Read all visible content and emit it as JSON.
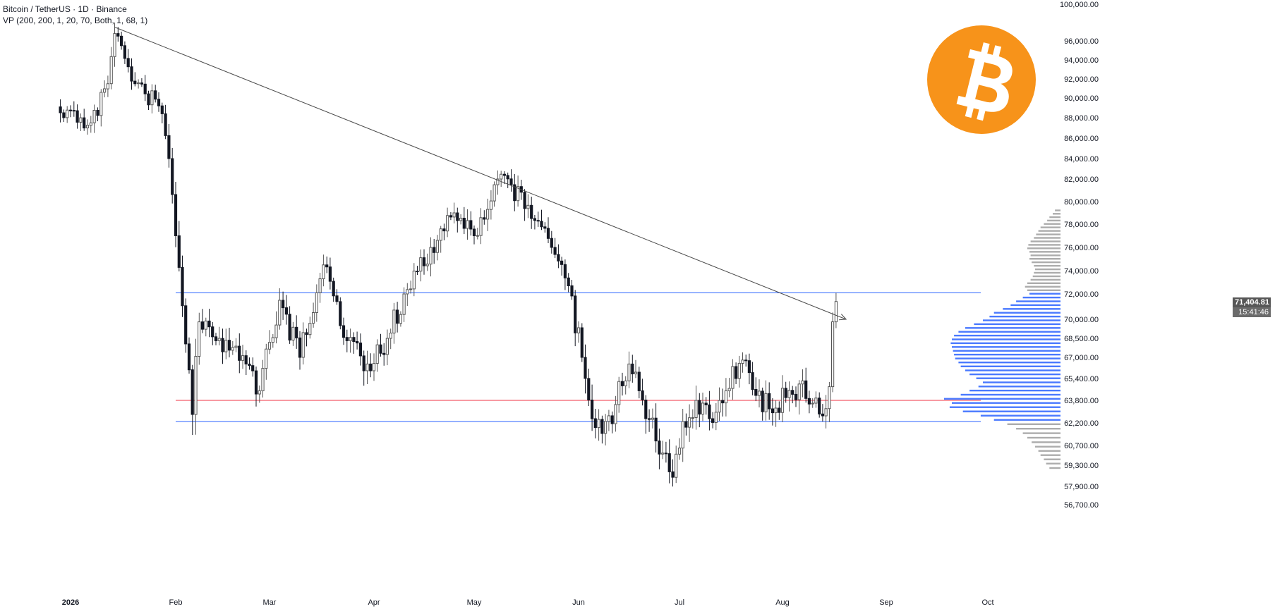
{
  "symbol_line": "Bitcoin / TetherUS · 1D · Binance",
  "indicator_line": "VP (200, 200, 1, 20, 70, Both, 1, 68, 1)",
  "last_price_label": "71,404.81",
  "countdown_label": "15:41:46",
  "logo_icon": "bitcoin-logo-icon",
  "colors": {
    "accent_line": "#2962ff",
    "support_line": "#f23645",
    "candle_up": "#555555",
    "candle_down": "#131722",
    "vp_up": "#2962ff",
    "vp_down": "#9e9e9e",
    "logo": "#f7931a"
  },
  "chart_data": {
    "type": "candlestick",
    "title": "Bitcoin / TetherUS · 1D · Binance",
    "y_axis_ticks": [
      100000,
      96000,
      94000,
      92000,
      90000,
      88000,
      86000,
      84000,
      82000,
      80000,
      78000,
      76000,
      74000,
      72000,
      70000,
      68500,
      67000,
      65400,
      63800,
      62200,
      60700,
      59300,
      57900,
      56700
    ],
    "y_tick_labels": [
      "100,000.00",
      "96,000.00",
      "94,000.00",
      "92,000.00",
      "90,000.00",
      "88,000.00",
      "86,000.00",
      "84,000.00",
      "82,000.00",
      "80,000.00",
      "78,000.00",
      "76,000.00",
      "74,000.00",
      "72,000.00",
      "70,000.00",
      "68,500.00",
      "67,000.00",
      "65,400.00",
      "63,800.00",
      "62,200.00",
      "60,700.00",
      "59,300.00",
      "57,900.00",
      "56,700.00"
    ],
    "x_axis_labels": [
      {
        "label": "2026",
        "date": "2026-01-01"
      },
      {
        "label": "Feb",
        "date": "2026-02-01"
      },
      {
        "label": "Mar",
        "date": "2026-03-01"
      },
      {
        "label": "Apr",
        "date": "2026-04-01"
      },
      {
        "label": "May",
        "date": "2026-05-01"
      },
      {
        "label": "Jun",
        "date": "2026-06-01"
      },
      {
        "label": "Jul",
        "date": "2026-07-01"
      },
      {
        "label": "Aug",
        "date": "2026-08-01"
      },
      {
        "label": "Sep",
        "date": "2026-09-01"
      },
      {
        "label": "Oct",
        "date": "2026-10-01"
      }
    ],
    "first_candle_date": "2025-12-29",
    "key_closes": [
      {
        "date": "2025-12-29",
        "close": 88500
      },
      {
        "date": "2026-01-07",
        "close": 87500
      },
      {
        "date": "2026-01-12",
        "close": 91500
      },
      {
        "date": "2026-01-14",
        "close": 96800
      },
      {
        "date": "2026-01-20",
        "close": 91500
      },
      {
        "date": "2026-01-27",
        "close": 89200
      },
      {
        "date": "2026-01-30",
        "close": 84000
      },
      {
        "date": "2026-02-01",
        "close": 77000
      },
      {
        "date": "2026-02-06",
        "close": 62800
      },
      {
        "date": "2026-02-08",
        "close": 69800
      },
      {
        "date": "2026-02-14",
        "close": 68500
      },
      {
        "date": "2026-02-22",
        "close": 66500
      },
      {
        "date": "2026-02-26",
        "close": 64500
      },
      {
        "date": "2026-03-04",
        "close": 71500
      },
      {
        "date": "2026-03-10",
        "close": 67000
      },
      {
        "date": "2026-03-17",
        "close": 74500
      },
      {
        "date": "2026-03-22",
        "close": 69500
      },
      {
        "date": "2026-03-30",
        "close": 66500
      },
      {
        "date": "2026-04-05",
        "close": 68500
      },
      {
        "date": "2026-04-10",
        "close": 72000
      },
      {
        "date": "2026-04-18",
        "close": 76000
      },
      {
        "date": "2026-04-25",
        "close": 79000
      },
      {
        "date": "2026-05-01",
        "close": 77000
      },
      {
        "date": "2026-05-08",
        "close": 82000
      },
      {
        "date": "2026-05-12",
        "close": 81500
      },
      {
        "date": "2026-05-18",
        "close": 78500
      },
      {
        "date": "2026-05-24",
        "close": 76000
      },
      {
        "date": "2026-05-29",
        "close": 72700
      },
      {
        "date": "2026-06-02",
        "close": 67000
      },
      {
        "date": "2026-06-05",
        "close": 62500
      },
      {
        "date": "2026-06-08",
        "close": 61500
      },
      {
        "date": "2026-06-12",
        "close": 63500
      },
      {
        "date": "2026-06-16",
        "close": 66500
      },
      {
        "date": "2026-06-19",
        "close": 64500
      },
      {
        "date": "2026-06-24",
        "close": 61000
      },
      {
        "date": "2026-06-29",
        "close": 58500
      },
      {
        "date": "2026-07-02",
        "close": 62300
      },
      {
        "date": "2026-07-06",
        "close": 63800
      },
      {
        "date": "2026-07-10",
        "close": 62500
      },
      {
        "date": "2026-07-15",
        "close": 64500
      },
      {
        "date": "2026-07-20",
        "close": 66800
      },
      {
        "date": "2026-07-23",
        "close": 64600
      },
      {
        "date": "2026-07-28",
        "close": 63200
      },
      {
        "date": "2026-08-02",
        "close": 64000
      },
      {
        "date": "2026-08-06",
        "close": 65000
      },
      {
        "date": "2026-08-10",
        "close": 63600
      },
      {
        "date": "2026-08-13",
        "close": 62700
      },
      {
        "date": "2026-08-15",
        "close": 64800
      },
      {
        "date": "2026-08-16",
        "close": 69800
      },
      {
        "date": "2026-08-17",
        "close": 71404.81
      }
    ],
    "horizontal_lines": [
      {
        "price": 72100,
        "color": "#2962ff"
      },
      {
        "price": 63800,
        "color": "#f23645"
      },
      {
        "price": 62300,
        "color": "#2962ff"
      }
    ],
    "trend_line": {
      "start": {
        "date": "2026-01-14",
        "price": 97500
      },
      "end": {
        "date": "2026-08-20",
        "price": 70000
      },
      "arrow": true
    },
    "volume_profile": {
      "price_min": 59000,
      "price_max": 79200,
      "up_color": "#2962ff",
      "down_color": "#9e9e9e",
      "rows": [
        {
          "price": 59100,
          "volume": 10
        },
        {
          "price": 59400,
          "volume": 13
        },
        {
          "price": 59700,
          "volume": 15
        },
        {
          "price": 60000,
          "volume": 18
        },
        {
          "price": 60300,
          "volume": 20
        },
        {
          "price": 60600,
          "volume": 23
        },
        {
          "price": 60900,
          "volume": 26
        },
        {
          "price": 61200,
          "volume": 30
        },
        {
          "price": 61500,
          "volume": 34
        },
        {
          "price": 61800,
          "volume": 40
        },
        {
          "price": 62100,
          "volume": 48
        },
        {
          "price": 62400,
          "volume": 60
        },
        {
          "price": 62700,
          "volume": 72
        },
        {
          "price": 63000,
          "volume": 88
        },
        {
          "price": 63300,
          "volume": 100
        },
        {
          "price": 63600,
          "volume": 98
        },
        {
          "price": 63900,
          "volume": 105
        },
        {
          "price": 64200,
          "volume": 90
        },
        {
          "price": 64500,
          "volume": 82
        },
        {
          "price": 64800,
          "volume": 74
        },
        {
          "price": 65100,
          "volume": 70
        },
        {
          "price": 65400,
          "volume": 76
        },
        {
          "price": 65700,
          "volume": 82
        },
        {
          "price": 66000,
          "volume": 86
        },
        {
          "price": 66300,
          "volume": 90
        },
        {
          "price": 66600,
          "volume": 92
        },
        {
          "price": 66900,
          "volume": 95
        },
        {
          "price": 67200,
          "volume": 96
        },
        {
          "price": 67500,
          "volume": 97
        },
        {
          "price": 67800,
          "volume": 98
        },
        {
          "price": 68100,
          "volume": 99
        },
        {
          "price": 68400,
          "volume": 98
        },
        {
          "price": 68700,
          "volume": 96
        },
        {
          "price": 69000,
          "volume": 92
        },
        {
          "price": 69300,
          "volume": 86
        },
        {
          "price": 69600,
          "volume": 78
        },
        {
          "price": 69900,
          "volume": 70
        },
        {
          "price": 70200,
          "volume": 64
        },
        {
          "price": 70500,
          "volume": 60
        },
        {
          "price": 70800,
          "volume": 52
        },
        {
          "price": 71100,
          "volume": 45
        },
        {
          "price": 71400,
          "volume": 40
        },
        {
          "price": 71700,
          "volume": 34
        },
        {
          "price": 72000,
          "volume": 28
        },
        {
          "price": 72300,
          "volume": 30
        },
        {
          "price": 72600,
          "volume": 32
        },
        {
          "price": 72900,
          "volume": 30
        },
        {
          "price": 73200,
          "volume": 27
        },
        {
          "price": 73500,
          "volume": 25
        },
        {
          "price": 73800,
          "volume": 24
        },
        {
          "price": 74100,
          "volume": 23
        },
        {
          "price": 74400,
          "volume": 24
        },
        {
          "price": 74700,
          "volume": 26
        },
        {
          "price": 75000,
          "volume": 28
        },
        {
          "price": 75300,
          "volume": 27
        },
        {
          "price": 75600,
          "volume": 28
        },
        {
          "price": 75900,
          "volume": 30
        },
        {
          "price": 76200,
          "volume": 29
        },
        {
          "price": 76500,
          "volume": 27
        },
        {
          "price": 76800,
          "volume": 24
        },
        {
          "price": 77100,
          "volume": 22
        },
        {
          "price": 77400,
          "volume": 20
        },
        {
          "price": 77700,
          "volume": 18
        },
        {
          "price": 78000,
          "volume": 15
        },
        {
          "price": 78300,
          "volume": 12
        },
        {
          "price": 78600,
          "volume": 10
        },
        {
          "price": 78900,
          "volume": 7
        },
        {
          "price": 79200,
          "volume": 5
        }
      ]
    }
  }
}
